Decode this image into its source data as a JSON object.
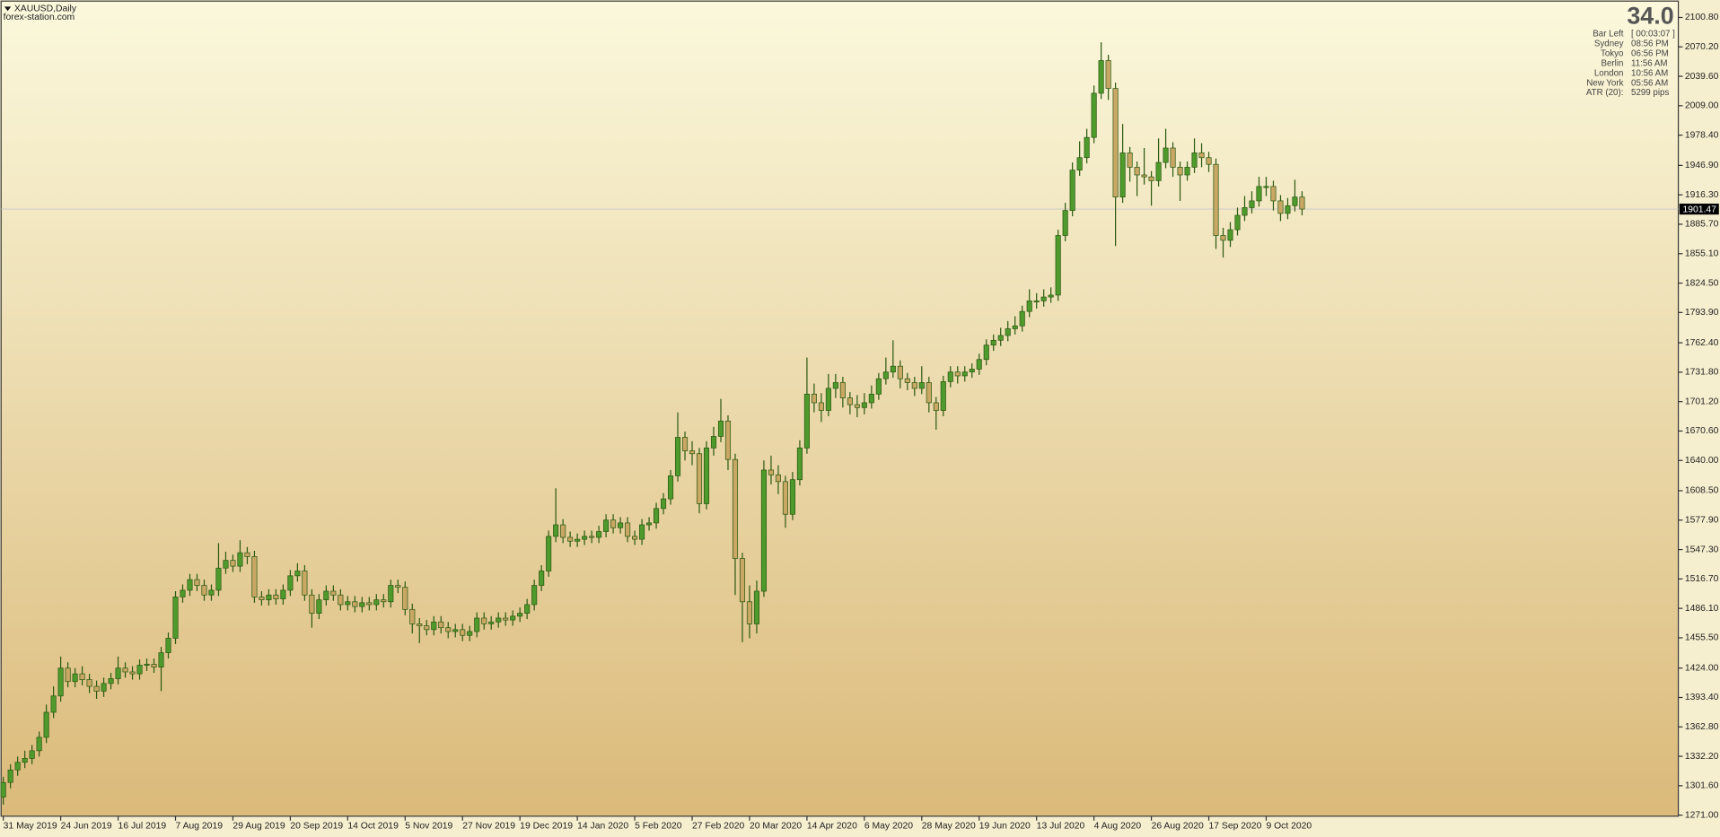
{
  "header": {
    "symbol": "XAUUSD,Daily",
    "site": "forex-station.com"
  },
  "info_panel": {
    "spread": "34.0",
    "rows": [
      {
        "label": "Bar Left",
        "value": "[ 00:03:07 ]"
      },
      {
        "label": "Sydney",
        "value": "08:56 PM"
      },
      {
        "label": "Tokyo",
        "value": "06:56 PM"
      },
      {
        "label": "Berlin",
        "value": "11:56 AM"
      },
      {
        "label": "London",
        "value": "10:56 AM"
      },
      {
        "label": "New York",
        "value": "05:56 AM"
      },
      {
        "label": "ATR (20):",
        "value": "5299 pips"
      }
    ]
  },
  "chart_data": {
    "type": "candlestick",
    "categories": [
      "31 May 2019",
      null,
      null,
      null,
      null,
      null,
      null,
      null,
      "24 Jun 2019",
      null,
      null,
      null,
      null,
      null,
      null,
      null,
      "16 Jul 2019",
      null,
      null,
      null,
      null,
      null,
      null,
      null,
      "7 Aug 2019",
      null,
      null,
      null,
      null,
      null,
      null,
      null,
      "29 Aug 2019",
      null,
      null,
      null,
      null,
      null,
      null,
      null,
      "20 Sep 2019",
      null,
      null,
      null,
      null,
      null,
      null,
      null,
      "14 Oct 2019",
      null,
      null,
      null,
      null,
      null,
      null,
      null,
      "5 Nov 2019",
      null,
      null,
      null,
      null,
      null,
      null,
      null,
      "27 Nov 2019",
      null,
      null,
      null,
      null,
      null,
      null,
      null,
      "19 Dec 2019",
      null,
      null,
      null,
      null,
      null,
      null,
      null,
      "14 Jan 2020",
      null,
      null,
      null,
      null,
      null,
      null,
      null,
      "5 Feb 2020",
      null,
      null,
      null,
      null,
      null,
      null,
      null,
      "27 Feb 2020",
      null,
      null,
      null,
      null,
      null,
      null,
      null,
      "20 Mar 2020",
      null,
      null,
      null,
      null,
      null,
      null,
      null,
      "14 Apr 2020",
      null,
      null,
      null,
      null,
      null,
      null,
      null,
      "6 May 2020",
      null,
      null,
      null,
      null,
      null,
      null,
      null,
      "28 May 2020",
      null,
      null,
      null,
      null,
      null,
      null,
      null,
      "19 Jun 2020",
      null,
      null,
      null,
      null,
      null,
      null,
      null,
      "13 Jul 2020",
      null,
      null,
      null,
      null,
      null,
      null,
      null,
      "4 Aug 2020",
      null,
      null,
      null,
      null,
      null,
      null,
      null,
      "26 Aug 2020",
      null,
      null,
      null,
      null,
      null,
      null,
      null,
      "17 Sep 2020",
      null,
      null,
      null,
      null,
      null,
      null,
      null,
      "9 Oct 2020",
      null,
      null,
      null,
      null,
      null
    ],
    "open": [
      1290,
      1305,
      1318,
      1326,
      1330,
      1338,
      1352,
      1378,
      1395,
      1424,
      1410,
      1418,
      1412,
      1405,
      1400,
      1408,
      1413,
      1424,
      1420,
      1418,
      1427,
      1428,
      1425,
      1440,
      1455,
      1498,
      1505,
      1516,
      1510,
      1500,
      1505,
      1528,
      1536,
      1530,
      1544,
      1540,
      1498,
      1495,
      1500,
      1496,
      1505,
      1520,
      1525,
      1500,
      1481,
      1495,
      1504,
      1500,
      1490,
      1493,
      1488,
      1492,
      1490,
      1495,
      1493,
      1510,
      1508,
      1485,
      1470,
      1468,
      1464,
      1472,
      1466,
      1462,
      1464,
      1458,
      1462,
      1476,
      1470,
      1472,
      1476,
      1474,
      1478,
      1481,
      1490,
      1510,
      1525,
      1561,
      1573,
      1560,
      1556,
      1558,
      1561,
      1560,
      1566,
      1578,
      1570,
      1575,
      1561,
      1558,
      1573,
      1575,
      1590,
      1600,
      1624,
      1664,
      1650,
      1647,
      1595,
      1653,
      1665,
      1681,
      1641,
      1538,
      1493,
      1470,
      1504,
      1630,
      1625,
      1618,
      1584,
      1620,
      1653,
      1709,
      1700,
      1692,
      1715,
      1721,
      1705,
      1698,
      1695,
      1700,
      1709,
      1725,
      1732,
      1738,
      1725,
      1721,
      1715,
      1721,
      1700,
      1692,
      1722,
      1732,
      1728,
      1732,
      1735,
      1745,
      1760,
      1765,
      1770,
      1777,
      1780,
      1795,
      1806,
      1806,
      1810,
      1812,
      1874,
      1900,
      1942,
      1955,
      1976,
      2022,
      2056,
      2027,
      1914,
      1960,
      1945,
      1937,
      1935,
      1931,
      1950,
      1965,
      1945,
      1937,
      1945,
      1960,
      1955,
      1948,
      1874,
      1869,
      1880,
      1895,
      1903,
      1910,
      1925,
      1925,
      1910,
      1897,
      1905,
      1914
    ],
    "high": [
      1311,
      1324,
      1332,
      1338,
      1344,
      1358,
      1386,
      1405,
      1436,
      1430,
      1424,
      1426,
      1418,
      1411,
      1414,
      1419,
      1436,
      1430,
      1426,
      1433,
      1434,
      1434,
      1446,
      1461,
      1504,
      1511,
      1522,
      1522,
      1516,
      1511,
      1554,
      1545,
      1542,
      1557,
      1550,
      1546,
      1504,
      1506,
      1506,
      1511,
      1526,
      1533,
      1531,
      1506,
      1501,
      1510,
      1510,
      1506,
      1499,
      1499,
      1498,
      1498,
      1501,
      1501,
      1516,
      1516,
      1514,
      1491,
      1476,
      1474,
      1478,
      1478,
      1472,
      1470,
      1470,
      1468,
      1482,
      1482,
      1478,
      1482,
      1482,
      1484,
      1487,
      1496,
      1516,
      1531,
      1567,
      1611,
      1579,
      1566,
      1564,
      1567,
      1567,
      1572,
      1584,
      1584,
      1581,
      1581,
      1567,
      1579,
      1581,
      1596,
      1606,
      1630,
      1690,
      1670,
      1660,
      1653,
      1660,
      1675,
      1704,
      1687,
      1647,
      1544,
      1510,
      1515,
      1640,
      1645,
      1635,
      1624,
      1628,
      1661,
      1747,
      1720,
      1710,
      1730,
      1730,
      1727,
      1711,
      1708,
      1710,
      1718,
      1731,
      1747,
      1765,
      1744,
      1731,
      1727,
      1738,
      1727,
      1706,
      1728,
      1738,
      1738,
      1738,
      1741,
      1751,
      1766,
      1771,
      1778,
      1785,
      1790,
      1801,
      1818,
      1814,
      1818,
      1820,
      1880,
      1908,
      1950,
      1972,
      1985,
      2030,
      2075,
      2062,
      2033,
      1990,
      1966,
      1951,
      1965,
      1941,
      1975,
      1985,
      1971,
      1951,
      1951,
      1975,
      1970,
      1961,
      1954,
      1882,
      1888,
      1903,
      1915,
      1920,
      1935,
      1935,
      1931,
      1916,
      1913,
      1932,
      1920
    ],
    "low": [
      1282,
      1299,
      1312,
      1320,
      1324,
      1332,
      1346,
      1372,
      1389,
      1404,
      1404,
      1406,
      1398,
      1392,
      1394,
      1402,
      1407,
      1414,
      1412,
      1412,
      1421,
      1419,
      1400,
      1434,
      1449,
      1492,
      1499,
      1504,
      1494,
      1494,
      1499,
      1522,
      1524,
      1524,
      1532,
      1492,
      1489,
      1489,
      1490,
      1490,
      1499,
      1514,
      1494,
      1466,
      1475,
      1489,
      1494,
      1484,
      1484,
      1482,
      1482,
      1484,
      1484,
      1487,
      1487,
      1502,
      1479,
      1460,
      1450,
      1458,
      1458,
      1460,
      1455,
      1456,
      1452,
      1452,
      1456,
      1464,
      1464,
      1466,
      1468,
      1468,
      1472,
      1475,
      1484,
      1504,
      1519,
      1555,
      1554,
      1550,
      1550,
      1552,
      1554,
      1554,
      1560,
      1564,
      1564,
      1555,
      1552,
      1552,
      1567,
      1569,
      1584,
      1594,
      1618,
      1640,
      1635,
      1585,
      1589,
      1645,
      1659,
      1630,
      1500,
      1451,
      1455,
      1460,
      1498,
      1615,
      1605,
      1570,
      1578,
      1614,
      1647,
      1690,
      1680,
      1686,
      1705,
      1695,
      1688,
      1685,
      1688,
      1694,
      1703,
      1719,
      1726,
      1715,
      1713,
      1707,
      1709,
      1690,
      1672,
      1686,
      1716,
      1720,
      1722,
      1726,
      1729,
      1739,
      1754,
      1759,
      1764,
      1771,
      1774,
      1789,
      1798,
      1800,
      1804,
      1806,
      1868,
      1894,
      1936,
      1949,
      1970,
      2016,
      2015,
      1863,
      1908,
      1930,
      1915,
      1927,
      1905,
      1925,
      1944,
      1935,
      1910,
      1931,
      1939,
      1945,
      1940,
      1860,
      1851,
      1862,
      1874,
      1889,
      1897,
      1904,
      1915,
      1900,
      1889,
      1891,
      1899,
      1895
    ],
    "close": [
      1305,
      1318,
      1326,
      1330,
      1338,
      1352,
      1378,
      1395,
      1424,
      1410,
      1418,
      1412,
      1405,
      1400,
      1408,
      1413,
      1424,
      1420,
      1418,
      1427,
      1428,
      1425,
      1440,
      1455,
      1498,
      1505,
      1516,
      1510,
      1500,
      1505,
      1528,
      1536,
      1530,
      1544,
      1540,
      1498,
      1495,
      1500,
      1496,
      1505,
      1520,
      1525,
      1500,
      1481,
      1495,
      1504,
      1500,
      1490,
      1493,
      1488,
      1492,
      1490,
      1495,
      1493,
      1510,
      1508,
      1485,
      1470,
      1468,
      1464,
      1472,
      1466,
      1462,
      1464,
      1458,
      1462,
      1476,
      1470,
      1472,
      1476,
      1474,
      1478,
      1481,
      1490,
      1510,
      1525,
      1561,
      1573,
      1560,
      1556,
      1558,
      1561,
      1560,
      1566,
      1578,
      1570,
      1575,
      1561,
      1558,
      1573,
      1575,
      1590,
      1600,
      1624,
      1664,
      1650,
      1647,
      1595,
      1653,
      1665,
      1681,
      1641,
      1538,
      1493,
      1470,
      1504,
      1630,
      1625,
      1618,
      1584,
      1620,
      1653,
      1709,
      1700,
      1692,
      1715,
      1721,
      1705,
      1698,
      1695,
      1700,
      1709,
      1725,
      1732,
      1738,
      1725,
      1721,
      1715,
      1721,
      1700,
      1692,
      1722,
      1732,
      1728,
      1732,
      1735,
      1745,
      1760,
      1765,
      1770,
      1777,
      1780,
      1795,
      1806,
      1806,
      1810,
      1812,
      1874,
      1900,
      1942,
      1955,
      1976,
      2022,
      2056,
      2027,
      1914,
      1960,
      1945,
      1937,
      1935,
      1931,
      1950,
      1965,
      1945,
      1937,
      1945,
      1960,
      1955,
      1948,
      1874,
      1869,
      1880,
      1895,
      1903,
      1910,
      1925,
      1925,
      1910,
      1897,
      1905,
      1914,
      1901.47
    ],
    "up_color": "#4e9a2c",
    "down_color": "#c9a764",
    "wick_color": "#2d5a12",
    "current_price": 1901.47,
    "current_price_line_color": "#c8c8c8",
    "ylim": [
      1269.9,
      2116.7
    ],
    "yticks": [
      {
        "value": 2100.8,
        "label": "2100.80"
      },
      {
        "value": 2070.2,
        "label": "2070.20"
      },
      {
        "value": 2039.6,
        "label": "2039.60"
      },
      {
        "value": 2009,
        "label": "2009.00"
      },
      {
        "value": 1978.4,
        "label": "1978.40"
      },
      {
        "value": 1946.9,
        "label": "1946.90"
      },
      {
        "value": 1916.3,
        "label": "1916.30"
      },
      {
        "value": 1885.7,
        "label": "1885.70"
      },
      {
        "value": 1855.1,
        "label": "1855.10"
      },
      {
        "value": 1824.5,
        "label": "1824.50"
      },
      {
        "value": 1793.9,
        "label": "1793.90"
      },
      {
        "value": 1762.4,
        "label": "1762.40"
      },
      {
        "value": 1731.8,
        "label": "1731.80"
      },
      {
        "value": 1701.2,
        "label": "1701.20"
      },
      {
        "value": 1670.6,
        "label": "1670.60"
      },
      {
        "value": 1640,
        "label": "1640.00"
      },
      {
        "value": 1608.5,
        "label": "1608.50"
      },
      {
        "value": 1577.9,
        "label": "1577.90"
      },
      {
        "value": 1547.3,
        "label": "1547.30"
      },
      {
        "value": 1516.7,
        "label": "1516.70"
      },
      {
        "value": 1486.1,
        "label": "1486.10"
      },
      {
        "value": 1455.5,
        "label": "1455.50"
      },
      {
        "value": 1424,
        "label": "1424.00"
      },
      {
        "value": 1393.4,
        "label": "1393.40"
      },
      {
        "value": 1362.8,
        "label": "1362.80"
      },
      {
        "value": 1332.2,
        "label": "1332.20"
      },
      {
        "value": 1301.6,
        "label": "1301.60"
      },
      {
        "value": 1271,
        "label": "1271.00"
      }
    ],
    "grid": false
  }
}
